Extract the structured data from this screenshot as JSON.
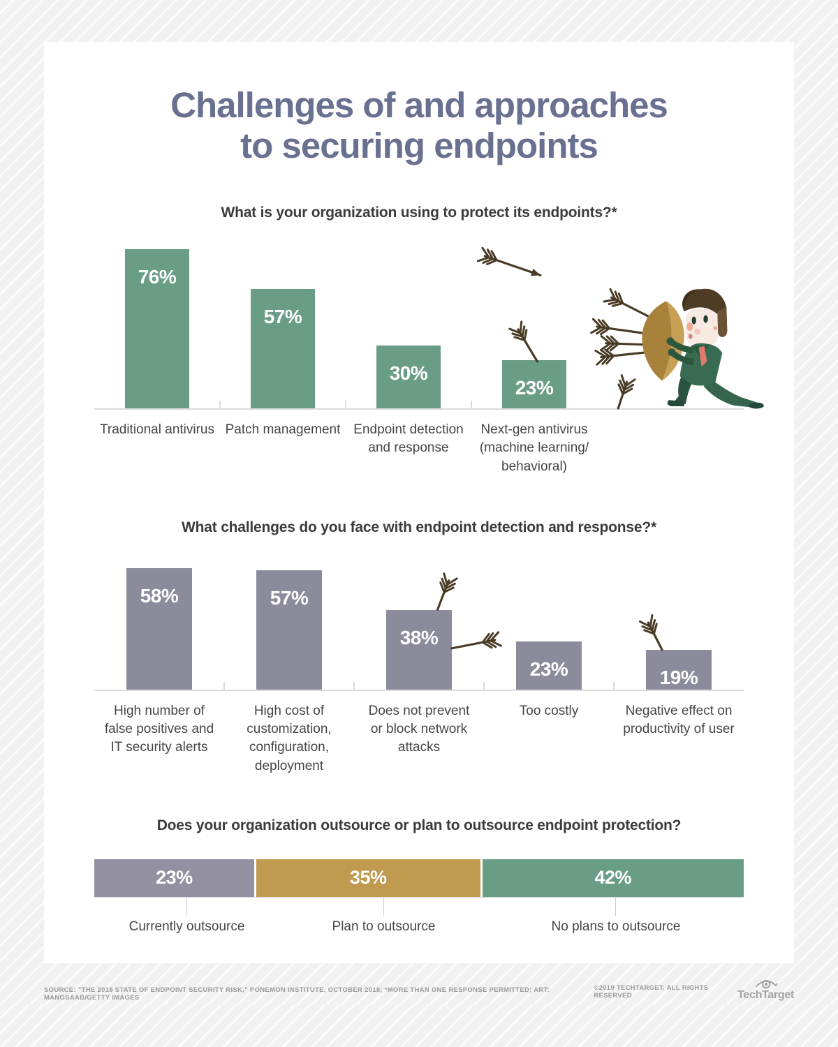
{
  "title": {
    "line1": "Challenges of and approaches",
    "line2": "to securing endpoints"
  },
  "colors": {
    "green": "#6a9d85",
    "gray_purple": "#8c8b9b",
    "gold": "#c09a4e",
    "title_slate": "#697090",
    "arrow_brown": "#483a24"
  },
  "chart_data": [
    {
      "type": "bar",
      "title": "What is your organization using to protect its endpoints?*",
      "categories": [
        "Traditional antivirus",
        "Patch management",
        "Endpoint detection and response",
        "Next-gen antivirus (machine learning/ behavioral)"
      ],
      "values": [
        76,
        57,
        30,
        23
      ],
      "value_labels": [
        "76%",
        "57%",
        "30%",
        "23%"
      ],
      "unit": "%",
      "ylim": [
        0,
        80
      ],
      "bar_color": "#6a9d85",
      "grid": false,
      "legend": "none"
    },
    {
      "type": "bar",
      "title": "What challenges do you face with endpoint detection and response?*",
      "categories": [
        "High number of false positives and IT security alerts",
        "High cost of customization, configuration, deployment",
        "Does not prevent or block network attacks",
        "Too costly",
        "Negative effect on productivity of user"
      ],
      "values": [
        58,
        57,
        38,
        23,
        19
      ],
      "value_labels": [
        "58%",
        "57%",
        "38%",
        "23%",
        "19%"
      ],
      "unit": "%",
      "ylim": [
        0,
        60
      ],
      "bar_color": "#8c8b9b",
      "grid": false,
      "legend": "none"
    },
    {
      "type": "stacked-bar",
      "title": "Does your organization outsource or plan to outsource endpoint protection?",
      "segments": [
        {
          "label": "Currently outsource",
          "value": 23,
          "display": "23%",
          "color": "#9391a1"
        },
        {
          "label": "Plan to outsource",
          "value": 35,
          "display": "35%",
          "color": "#c09a4e"
        },
        {
          "label": "No plans to outsource",
          "value": 42,
          "display": "42%",
          "color": "#6a9d85"
        }
      ],
      "unit": "%"
    }
  ],
  "footer": {
    "source": "SOURCE: \"THE 2018 STATE OF ENDPOINT SECURITY RISK,\" PONEMON INSTITUTE, OCTOBER 2018; *MORE THAN ONE RESPONSE PERMITTED; ART: MANGSAAB/GETTY IMAGES",
    "copyright": "©2019 TECHTARGET. ALL RIGHTS RESERVED",
    "brand": "TechTarget"
  }
}
